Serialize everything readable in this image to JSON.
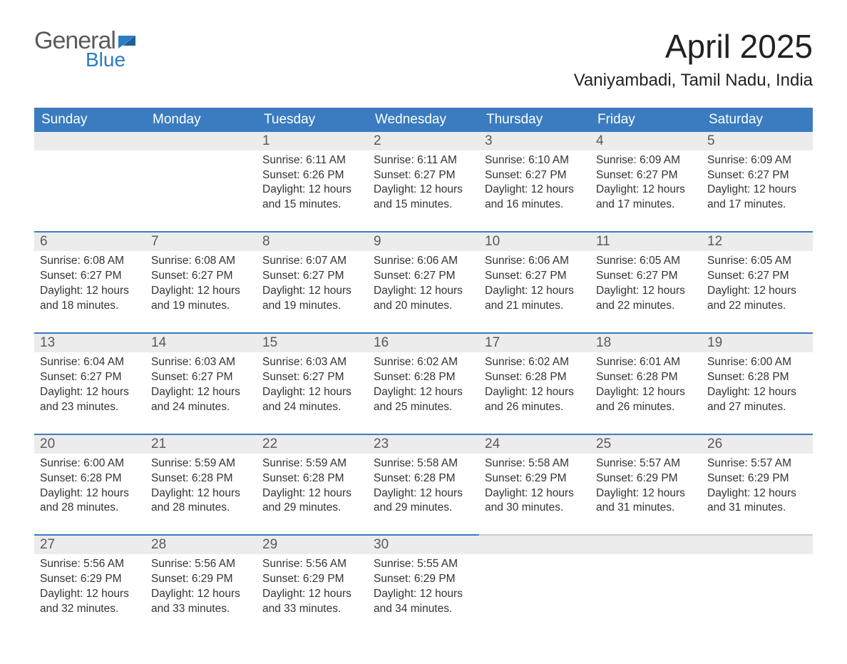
{
  "logo": {
    "general": "General",
    "blue": "Blue"
  },
  "title": "April 2025",
  "location": "Vaniyambadi, Tamil Nadu, India",
  "colors": {
    "header_bg": "#3a7cbf",
    "daynum_bg": "#ececec",
    "accent_border": "#3a7cbf",
    "logo_blue": "#2b7cc4"
  },
  "dow": [
    "Sunday",
    "Monday",
    "Tuesday",
    "Wednesday",
    "Thursday",
    "Friday",
    "Saturday"
  ],
  "weeks": [
    [
      null,
      null,
      {
        "n": "1",
        "sr": "Sunrise: 6:11 AM",
        "ss": "Sunset: 6:26 PM",
        "dl1": "Daylight: 12 hours",
        "dl2": "and 15 minutes."
      },
      {
        "n": "2",
        "sr": "Sunrise: 6:11 AM",
        "ss": "Sunset: 6:27 PM",
        "dl1": "Daylight: 12 hours",
        "dl2": "and 15 minutes."
      },
      {
        "n": "3",
        "sr": "Sunrise: 6:10 AM",
        "ss": "Sunset: 6:27 PM",
        "dl1": "Daylight: 12 hours",
        "dl2": "and 16 minutes."
      },
      {
        "n": "4",
        "sr": "Sunrise: 6:09 AM",
        "ss": "Sunset: 6:27 PM",
        "dl1": "Daylight: 12 hours",
        "dl2": "and 17 minutes."
      },
      {
        "n": "5",
        "sr": "Sunrise: 6:09 AM",
        "ss": "Sunset: 6:27 PM",
        "dl1": "Daylight: 12 hours",
        "dl2": "and 17 minutes."
      }
    ],
    [
      {
        "n": "6",
        "sr": "Sunrise: 6:08 AM",
        "ss": "Sunset: 6:27 PM",
        "dl1": "Daylight: 12 hours",
        "dl2": "and 18 minutes."
      },
      {
        "n": "7",
        "sr": "Sunrise: 6:08 AM",
        "ss": "Sunset: 6:27 PM",
        "dl1": "Daylight: 12 hours",
        "dl2": "and 19 minutes."
      },
      {
        "n": "8",
        "sr": "Sunrise: 6:07 AM",
        "ss": "Sunset: 6:27 PM",
        "dl1": "Daylight: 12 hours",
        "dl2": "and 19 minutes."
      },
      {
        "n": "9",
        "sr": "Sunrise: 6:06 AM",
        "ss": "Sunset: 6:27 PM",
        "dl1": "Daylight: 12 hours",
        "dl2": "and 20 minutes."
      },
      {
        "n": "10",
        "sr": "Sunrise: 6:06 AM",
        "ss": "Sunset: 6:27 PM",
        "dl1": "Daylight: 12 hours",
        "dl2": "and 21 minutes."
      },
      {
        "n": "11",
        "sr": "Sunrise: 6:05 AM",
        "ss": "Sunset: 6:27 PM",
        "dl1": "Daylight: 12 hours",
        "dl2": "and 22 minutes."
      },
      {
        "n": "12",
        "sr": "Sunrise: 6:05 AM",
        "ss": "Sunset: 6:27 PM",
        "dl1": "Daylight: 12 hours",
        "dl2": "and 22 minutes."
      }
    ],
    [
      {
        "n": "13",
        "sr": "Sunrise: 6:04 AM",
        "ss": "Sunset: 6:27 PM",
        "dl1": "Daylight: 12 hours",
        "dl2": "and 23 minutes."
      },
      {
        "n": "14",
        "sr": "Sunrise: 6:03 AM",
        "ss": "Sunset: 6:27 PM",
        "dl1": "Daylight: 12 hours",
        "dl2": "and 24 minutes."
      },
      {
        "n": "15",
        "sr": "Sunrise: 6:03 AM",
        "ss": "Sunset: 6:27 PM",
        "dl1": "Daylight: 12 hours",
        "dl2": "and 24 minutes."
      },
      {
        "n": "16",
        "sr": "Sunrise: 6:02 AM",
        "ss": "Sunset: 6:28 PM",
        "dl1": "Daylight: 12 hours",
        "dl2": "and 25 minutes."
      },
      {
        "n": "17",
        "sr": "Sunrise: 6:02 AM",
        "ss": "Sunset: 6:28 PM",
        "dl1": "Daylight: 12 hours",
        "dl2": "and 26 minutes."
      },
      {
        "n": "18",
        "sr": "Sunrise: 6:01 AM",
        "ss": "Sunset: 6:28 PM",
        "dl1": "Daylight: 12 hours",
        "dl2": "and 26 minutes."
      },
      {
        "n": "19",
        "sr": "Sunrise: 6:00 AM",
        "ss": "Sunset: 6:28 PM",
        "dl1": "Daylight: 12 hours",
        "dl2": "and 27 minutes."
      }
    ],
    [
      {
        "n": "20",
        "sr": "Sunrise: 6:00 AM",
        "ss": "Sunset: 6:28 PM",
        "dl1": "Daylight: 12 hours",
        "dl2": "and 28 minutes."
      },
      {
        "n": "21",
        "sr": "Sunrise: 5:59 AM",
        "ss": "Sunset: 6:28 PM",
        "dl1": "Daylight: 12 hours",
        "dl2": "and 28 minutes."
      },
      {
        "n": "22",
        "sr": "Sunrise: 5:59 AM",
        "ss": "Sunset: 6:28 PM",
        "dl1": "Daylight: 12 hours",
        "dl2": "and 29 minutes."
      },
      {
        "n": "23",
        "sr": "Sunrise: 5:58 AM",
        "ss": "Sunset: 6:28 PM",
        "dl1": "Daylight: 12 hours",
        "dl2": "and 29 minutes."
      },
      {
        "n": "24",
        "sr": "Sunrise: 5:58 AM",
        "ss": "Sunset: 6:29 PM",
        "dl1": "Daylight: 12 hours",
        "dl2": "and 30 minutes."
      },
      {
        "n": "25",
        "sr": "Sunrise: 5:57 AM",
        "ss": "Sunset: 6:29 PM",
        "dl1": "Daylight: 12 hours",
        "dl2": "and 31 minutes."
      },
      {
        "n": "26",
        "sr": "Sunrise: 5:57 AM",
        "ss": "Sunset: 6:29 PM",
        "dl1": "Daylight: 12 hours",
        "dl2": "and 31 minutes."
      }
    ],
    [
      {
        "n": "27",
        "sr": "Sunrise: 5:56 AM",
        "ss": "Sunset: 6:29 PM",
        "dl1": "Daylight: 12 hours",
        "dl2": "and 32 minutes."
      },
      {
        "n": "28",
        "sr": "Sunrise: 5:56 AM",
        "ss": "Sunset: 6:29 PM",
        "dl1": "Daylight: 12 hours",
        "dl2": "and 33 minutes."
      },
      {
        "n": "29",
        "sr": "Sunrise: 5:56 AM",
        "ss": "Sunset: 6:29 PM",
        "dl1": "Daylight: 12 hours",
        "dl2": "and 33 minutes."
      },
      {
        "n": "30",
        "sr": "Sunrise: 5:55 AM",
        "ss": "Sunset: 6:29 PM",
        "dl1": "Daylight: 12 hours",
        "dl2": "and 34 minutes."
      },
      null,
      null,
      null
    ]
  ]
}
